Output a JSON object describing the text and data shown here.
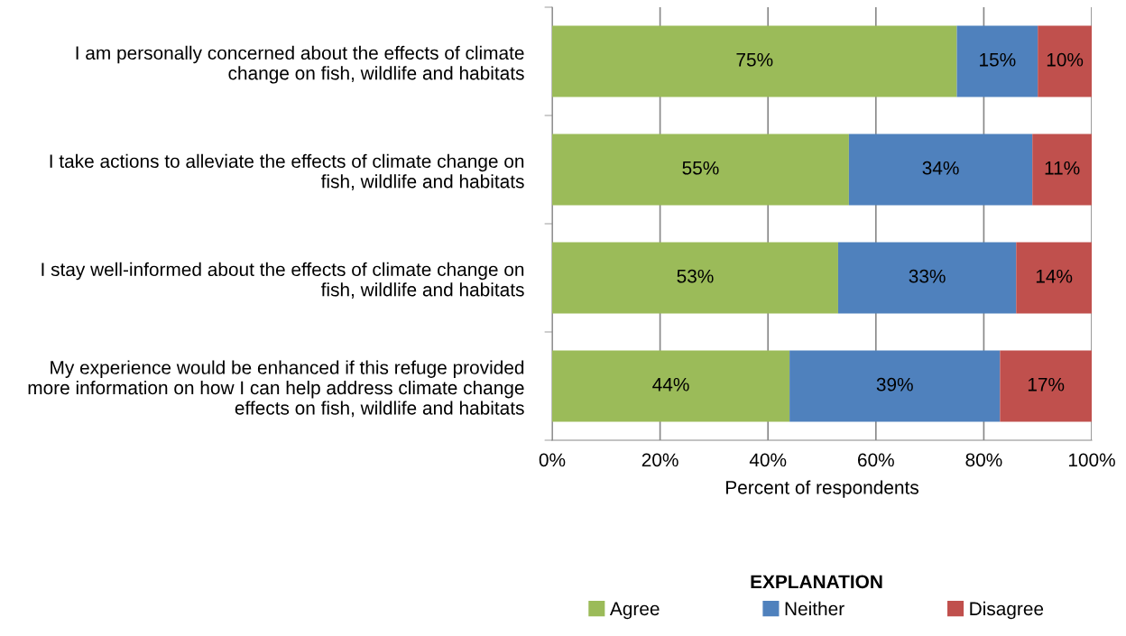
{
  "chart_data": {
    "type": "bar",
    "orientation": "horizontal",
    "stacked": true,
    "categories": [
      "I am personally concerned about the effects of climate\nchange on fish, wildlife and habitats",
      "I take actions to alleviate the effects of climate change on\nfish, wildlife and habitats",
      "I stay well-informed about the effects of climate change on\nfish, wildlife and habitats",
      "My experience would be enhanced if this refuge provided\nmore information on how I can help address climate change\neffects on fish, wildlife and habitats"
    ],
    "series": [
      {
        "name": "Agree",
        "color": "#9bbb59",
        "values": [
          75,
          55,
          53,
          44
        ],
        "value_labels": [
          "75%",
          "55%",
          "53%",
          "44%"
        ]
      },
      {
        "name": "Neither",
        "color": "#4f81bd",
        "values": [
          15,
          34,
          33,
          39
        ],
        "value_labels": [
          "15%",
          "34%",
          "33%",
          "39%"
        ]
      },
      {
        "name": "Disagree",
        "color": "#c0504d",
        "values": [
          10,
          11,
          14,
          17
        ],
        "value_labels": [
          "10%",
          "11%",
          "14%",
          "17%"
        ]
      }
    ],
    "xlabel": "Percent of respondents",
    "legend_title": "EXPLANATION",
    "legend": "bottom",
    "xlim": [
      0,
      100
    ],
    "xticks": [
      {
        "value": 0,
        "label": "0%"
      },
      {
        "value": 20,
        "label": "20%"
      },
      {
        "value": 40,
        "label": "40%"
      },
      {
        "value": 60,
        "label": "60%"
      },
      {
        "value": 80,
        "label": "80%"
      },
      {
        "value": 100,
        "label": "100%"
      }
    ],
    "grid": "x"
  }
}
